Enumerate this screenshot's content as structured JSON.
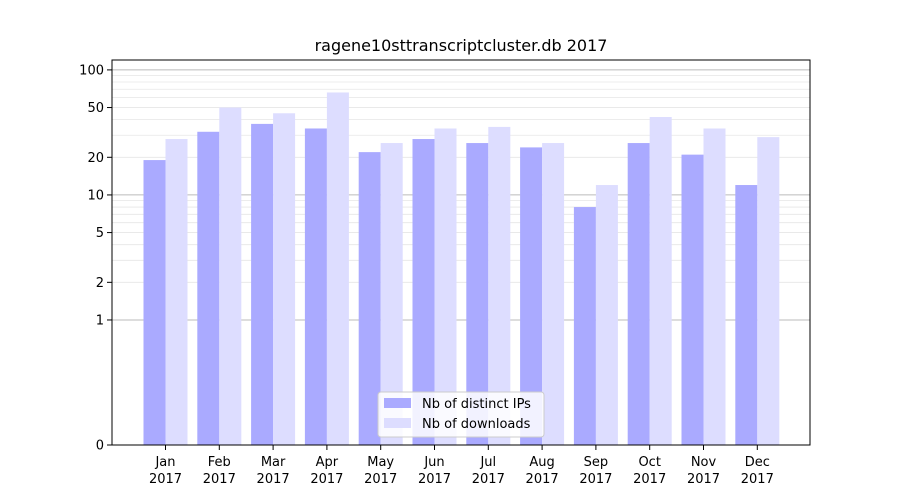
{
  "chart_data": {
    "type": "bar",
    "title": "ragene10sttranscriptcluster.db 2017",
    "xlabel": "",
    "ylabel": "",
    "y_scale": "symlog",
    "ylim": [
      0,
      120
    ],
    "y_ticks": [
      0,
      1,
      2,
      5,
      10,
      20,
      50,
      100
    ],
    "categories": [
      {
        "month": "Jan",
        "year": "2017"
      },
      {
        "month": "Feb",
        "year": "2017"
      },
      {
        "month": "Mar",
        "year": "2017"
      },
      {
        "month": "Apr",
        "year": "2017"
      },
      {
        "month": "May",
        "year": "2017"
      },
      {
        "month": "Jun",
        "year": "2017"
      },
      {
        "month": "Jul",
        "year": "2017"
      },
      {
        "month": "Aug",
        "year": "2017"
      },
      {
        "month": "Sep",
        "year": "2017"
      },
      {
        "month": "Oct",
        "year": "2017"
      },
      {
        "month": "Nov",
        "year": "2017"
      },
      {
        "month": "Dec",
        "year": "2017"
      }
    ],
    "series": [
      {
        "name": "Nb of distinct IPs",
        "color": "#aaaaff",
        "values": [
          19,
          32,
          37,
          34,
          22,
          28,
          26,
          24,
          8,
          26,
          21,
          12
        ]
      },
      {
        "name": "Nb of downloads",
        "color": "#ddddff",
        "values": [
          28,
          50,
          45,
          66,
          26,
          34,
          35,
          26,
          12,
          42,
          34,
          29
        ]
      }
    ],
    "grid": true,
    "legend_position": "bottom-center"
  }
}
